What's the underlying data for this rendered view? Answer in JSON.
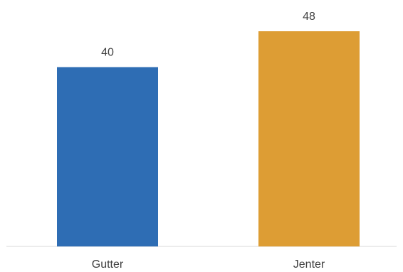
{
  "chart_data": {
    "type": "bar",
    "categories": [
      "Gutter",
      "Jenter"
    ],
    "values": [
      40,
      48
    ],
    "data_labels": [
      "40",
      "48"
    ],
    "colors": [
      "#2e6db4",
      "#dd9d34"
    ],
    "title": "",
    "xlabel": "",
    "ylabel": "",
    "ylim": [
      0,
      48
    ],
    "grid": false,
    "legend": "none"
  }
}
